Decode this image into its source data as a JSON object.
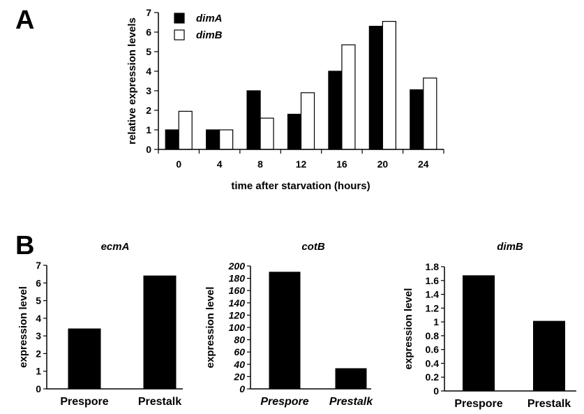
{
  "panels": {
    "a": "A",
    "b": "B"
  },
  "chart_data": [
    {
      "type": "bar",
      "panel": "A",
      "title": "",
      "xlabel": "time after starvation (hours)",
      "ylabel": "relative expression levels",
      "categories": [
        "0",
        "4",
        "8",
        "12",
        "16",
        "20",
        "24"
      ],
      "series": [
        {
          "name": "dimA",
          "color": "#000000",
          "values": [
            1.0,
            1.0,
            3.0,
            1.8,
            4.0,
            6.3,
            3.05
          ]
        },
        {
          "name": "dimB",
          "color": "#ffffff",
          "values": [
            1.95,
            1.0,
            1.6,
            2.9,
            5.35,
            6.55,
            3.65
          ]
        }
      ],
      "ylim": [
        0,
        7
      ],
      "yticks": [
        "0",
        "1",
        "2",
        "3",
        "4",
        "5",
        "6",
        "7"
      ],
      "legend": "top-left",
      "grid": false
    },
    {
      "type": "bar",
      "panel": "B",
      "title": "ecmA",
      "ylabel": "expression level",
      "categories": [
        "Prespore",
        "Prestalk"
      ],
      "values": [
        3.4,
        6.4
      ],
      "ylim": [
        0,
        7
      ],
      "yticks": [
        "0",
        "1",
        "2",
        "3",
        "4",
        "5",
        "6",
        "7"
      ],
      "grid": false
    },
    {
      "type": "bar",
      "panel": "B",
      "title": "cotB",
      "ylabel": "expression level",
      "categories": [
        "Prespore",
        "Prestalk"
      ],
      "values": [
        190,
        33
      ],
      "ylim": [
        0,
        200
      ],
      "yticks": [
        "0",
        "20",
        "40",
        "60",
        "80",
        "100",
        "120",
        "140",
        "160",
        "180",
        "200"
      ],
      "italic_ticks": true,
      "grid": false
    },
    {
      "type": "bar",
      "panel": "B",
      "title": "dimB",
      "ylabel": "expression level",
      "categories": [
        "Prespore",
        "Prestalk"
      ],
      "values": [
        1.67,
        1.01
      ],
      "ylim": [
        0,
        1.8
      ],
      "yticks": [
        "0",
        "0.2",
        "0.4",
        "0.6",
        "0.8",
        "1",
        "1.2",
        "1.4",
        "1.6",
        "1.8"
      ],
      "grid": false
    }
  ]
}
